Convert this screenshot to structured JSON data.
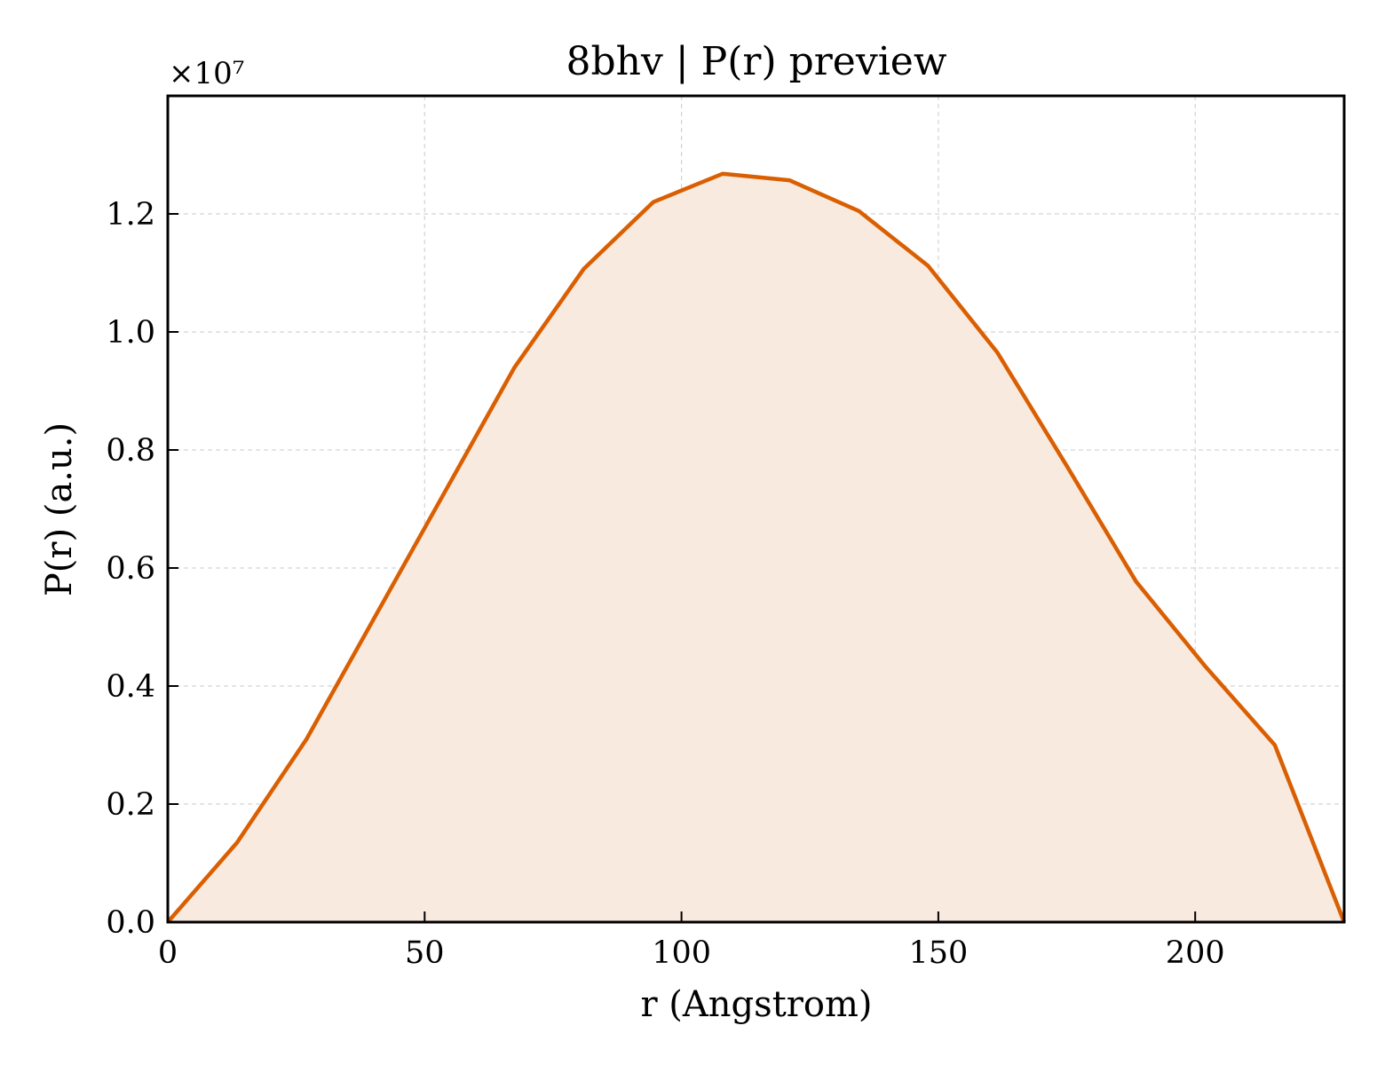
{
  "chart_data": {
    "type": "area",
    "title": "8bhv | P(r) preview",
    "xlabel": "r (Angstrom)",
    "ylabel": "P(r) (a.u.)",
    "y_offset_label": "×10⁷",
    "xlim": [
      0,
      229
    ],
    "ylim": [
      0,
      1.4
    ],
    "xticks": [
      0,
      50,
      100,
      150,
      200
    ],
    "xtick_labels": [
      "0",
      "50",
      "100",
      "150",
      "200"
    ],
    "yticks": [
      0,
      0.2,
      0.4,
      0.6,
      0.8,
      1.0,
      1.2
    ],
    "ytick_labels": [
      "0.0",
      "0.2",
      "0.4",
      "0.6",
      "0.8",
      "1.0",
      "1.2"
    ],
    "grid": true,
    "series": [
      {
        "color": "#d95f02",
        "fill_color": "#f9eadf",
        "x": [
          0,
          13.5,
          27,
          40.5,
          54,
          67.5,
          81,
          94.5,
          108,
          121,
          134.5,
          148,
          161.5,
          175,
          188.5,
          202,
          215.5,
          229
        ],
        "y": [
          0.0,
          0.135,
          0.31,
          0.52,
          0.73,
          0.94,
          1.107,
          1.22,
          1.268,
          1.257,
          1.205,
          1.112,
          0.965,
          0.773,
          0.577,
          0.433,
          0.3,
          0.0
        ]
      }
    ]
  }
}
